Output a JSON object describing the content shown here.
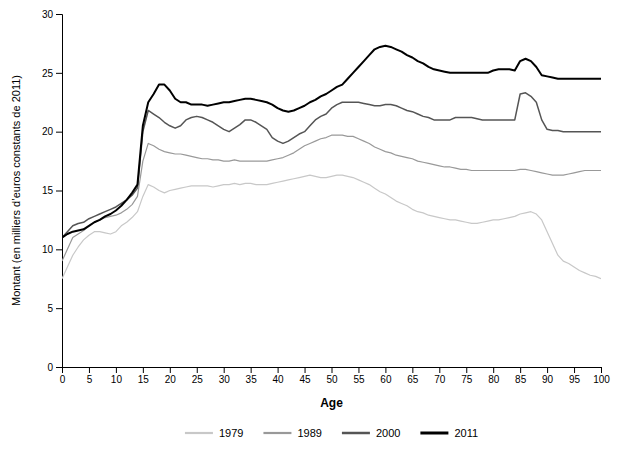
{
  "chart_data": {
    "type": "line",
    "xlabel": "Age",
    "ylabel": "Montant (en milliers d’euros constants de 2011)",
    "xlim": [
      0,
      100
    ],
    "ylim": [
      0,
      30
    ],
    "xticks": [
      0,
      5,
      10,
      15,
      20,
      25,
      30,
      35,
      40,
      45,
      50,
      55,
      60,
      65,
      70,
      75,
      80,
      85,
      90,
      95,
      100
    ],
    "yticks": [
      0,
      5,
      10,
      15,
      20,
      25,
      30
    ],
    "legend": "bottom",
    "x": [
      0,
      1,
      2,
      3,
      4,
      5,
      6,
      7,
      8,
      9,
      10,
      11,
      12,
      13,
      14,
      15,
      16,
      17,
      18,
      19,
      20,
      21,
      22,
      23,
      24,
      25,
      26,
      27,
      28,
      29,
      30,
      31,
      32,
      33,
      34,
      35,
      36,
      37,
      38,
      39,
      40,
      41,
      42,
      43,
      44,
      45,
      46,
      47,
      48,
      49,
      50,
      51,
      52,
      53,
      54,
      55,
      56,
      57,
      58,
      59,
      60,
      61,
      62,
      63,
      64,
      65,
      66,
      67,
      68,
      69,
      70,
      71,
      72,
      73,
      74,
      75,
      76,
      77,
      78,
      79,
      80,
      81,
      82,
      83,
      84,
      85,
      86,
      87,
      88,
      89,
      90,
      91,
      92,
      93,
      94,
      95,
      96,
      97,
      98,
      99,
      100
    ],
    "series": [
      {
        "name": "1979",
        "color": "#c8c8c8",
        "values": [
          7.5,
          8.5,
          9.5,
          10.2,
          10.8,
          11.2,
          11.5,
          11.5,
          11.4,
          11.3,
          11.5,
          12.0,
          12.3,
          12.7,
          13.2,
          14.5,
          15.5,
          15.3,
          15.0,
          14.8,
          15.0,
          15.1,
          15.2,
          15.3,
          15.4,
          15.4,
          15.4,
          15.4,
          15.3,
          15.4,
          15.5,
          15.5,
          15.6,
          15.5,
          15.6,
          15.6,
          15.5,
          15.5,
          15.5,
          15.6,
          15.7,
          15.8,
          15.9,
          16.0,
          16.1,
          16.2,
          16.3,
          16.2,
          16.1,
          16.1,
          16.2,
          16.3,
          16.3,
          16.2,
          16.1,
          15.9,
          15.7,
          15.5,
          15.2,
          14.9,
          14.7,
          14.4,
          14.1,
          13.9,
          13.7,
          13.4,
          13.2,
          13.1,
          12.9,
          12.8,
          12.7,
          12.6,
          12.5,
          12.5,
          12.4,
          12.3,
          12.2,
          12.2,
          12.3,
          12.4,
          12.5,
          12.5,
          12.6,
          12.7,
          12.8,
          13.0,
          13.1,
          13.2,
          13.0,
          12.5,
          11.5,
          10.5,
          9.5,
          9.0,
          8.8,
          8.5,
          8.2,
          8.0,
          7.8,
          7.7,
          7.5
        ]
      },
      {
        "name": "1989",
        "color": "#999999",
        "values": [
          9.0,
          10.0,
          11.0,
          11.3,
          11.6,
          12.0,
          12.3,
          12.5,
          12.7,
          12.8,
          12.9,
          13.1,
          13.4,
          13.8,
          14.5,
          17.5,
          19.0,
          18.8,
          18.5,
          18.3,
          18.2,
          18.1,
          18.1,
          18.0,
          17.9,
          17.8,
          17.7,
          17.7,
          17.6,
          17.6,
          17.5,
          17.5,
          17.6,
          17.5,
          17.5,
          17.5,
          17.5,
          17.5,
          17.5,
          17.6,
          17.7,
          17.8,
          18.0,
          18.2,
          18.5,
          18.8,
          19.0,
          19.2,
          19.4,
          19.5,
          19.7,
          19.7,
          19.7,
          19.6,
          19.6,
          19.4,
          19.2,
          19.0,
          18.7,
          18.5,
          18.3,
          18.2,
          18.0,
          17.9,
          17.8,
          17.7,
          17.5,
          17.4,
          17.3,
          17.2,
          17.1,
          17.0,
          17.0,
          16.9,
          16.8,
          16.8,
          16.7,
          16.7,
          16.7,
          16.7,
          16.7,
          16.7,
          16.7,
          16.7,
          16.7,
          16.8,
          16.8,
          16.7,
          16.6,
          16.5,
          16.4,
          16.3,
          16.3,
          16.3,
          16.4,
          16.5,
          16.6,
          16.7,
          16.7,
          16.7,
          16.7
        ]
      },
      {
        "name": "2000",
        "color": "#555555",
        "values": [
          11.0,
          11.5,
          12.0,
          12.2,
          12.3,
          12.6,
          12.8,
          13.0,
          13.2,
          13.4,
          13.6,
          13.9,
          14.2,
          14.6,
          15.2,
          20.0,
          21.8,
          21.5,
          21.2,
          20.8,
          20.5,
          20.3,
          20.5,
          21.0,
          21.2,
          21.3,
          21.2,
          21.0,
          20.8,
          20.5,
          20.2,
          20.0,
          20.3,
          20.6,
          21.0,
          21.0,
          20.8,
          20.5,
          20.2,
          19.5,
          19.2,
          19.0,
          19.2,
          19.5,
          19.8,
          20.0,
          20.5,
          21.0,
          21.3,
          21.5,
          22.0,
          22.3,
          22.5,
          22.5,
          22.5,
          22.5,
          22.4,
          22.3,
          22.2,
          22.2,
          22.3,
          22.3,
          22.2,
          22.0,
          21.8,
          21.7,
          21.5,
          21.3,
          21.2,
          21.0,
          21.0,
          21.0,
          21.0,
          21.2,
          21.2,
          21.2,
          21.2,
          21.1,
          21.0,
          21.0,
          21.0,
          21.0,
          21.0,
          21.0,
          21.0,
          23.2,
          23.3,
          23.0,
          22.5,
          21.0,
          20.2,
          20.1,
          20.1,
          20.0,
          20.0,
          20.0,
          20.0,
          20.0,
          20.0,
          20.0,
          20.0
        ]
      },
      {
        "name": "2011",
        "color": "#000000",
        "values": [
          11.0,
          11.3,
          11.5,
          11.6,
          11.7,
          12.0,
          12.3,
          12.5,
          12.8,
          13.0,
          13.3,
          13.7,
          14.2,
          14.8,
          15.5,
          20.5,
          22.5,
          23.2,
          24.0,
          24.0,
          23.5,
          22.8,
          22.5,
          22.5,
          22.3,
          22.3,
          22.3,
          22.2,
          22.3,
          22.4,
          22.5,
          22.5,
          22.6,
          22.7,
          22.8,
          22.8,
          22.7,
          22.6,
          22.5,
          22.3,
          22.0,
          21.8,
          21.7,
          21.8,
          22.0,
          22.2,
          22.5,
          22.7,
          23.0,
          23.2,
          23.5,
          23.8,
          24.0,
          24.5,
          25.0,
          25.5,
          26.0,
          26.5,
          27.0,
          27.2,
          27.3,
          27.2,
          27.0,
          26.8,
          26.5,
          26.3,
          26.0,
          25.8,
          25.5,
          25.3,
          25.2,
          25.1,
          25.0,
          25.0,
          25.0,
          25.0,
          25.0,
          25.0,
          25.0,
          25.0,
          25.2,
          25.3,
          25.3,
          25.3,
          25.2,
          26.0,
          26.2,
          26.0,
          25.5,
          24.8,
          24.7,
          24.6,
          24.5,
          24.5,
          24.5,
          24.5,
          24.5,
          24.5,
          24.5,
          24.5,
          24.5
        ]
      }
    ]
  }
}
